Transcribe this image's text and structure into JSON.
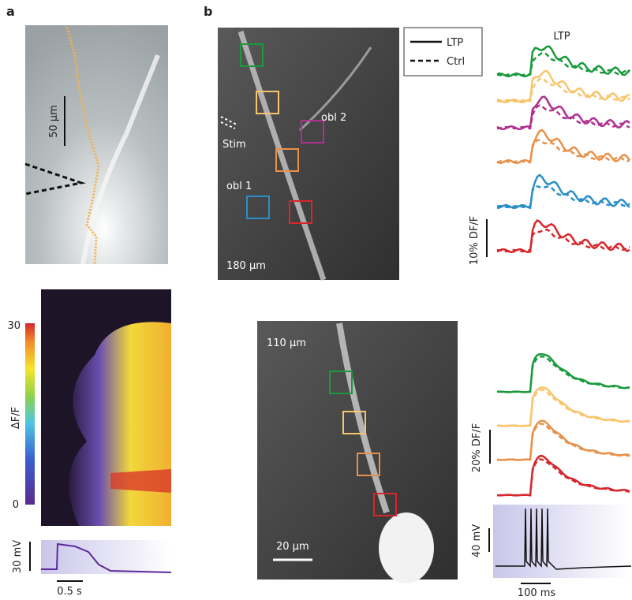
{
  "panel_a": {
    "label": "a",
    "scale_image": "50 µm",
    "colorbar_max": "30",
    "colorbar_min": "0",
    "colorbar_title": "ΔF/F",
    "voltage_scale": "30 mV",
    "time_scale": "0.5 s"
  },
  "panel_b": {
    "label": "b",
    "top_image": {
      "depth": "180 µm",
      "labels": [
        "obl 2",
        "Stim",
        "obl 1"
      ]
    },
    "legend": [
      "LTP",
      "Ctrl"
    ],
    "traces_title": "LTP",
    "top_scale": "10% DF/F",
    "bottom_image": {
      "depth": "110 µm",
      "scale": "20 µm"
    },
    "bottom_scale": "20% DF/F",
    "voltage_scale": "40 mV",
    "time_scale": "100 ms"
  }
}
